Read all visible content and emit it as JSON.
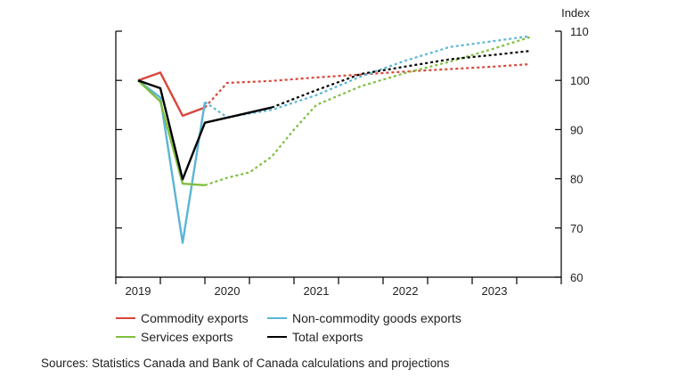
{
  "chart_data": {
    "type": "line",
    "ylabel": "Index",
    "ylim": [
      60,
      110
    ],
    "yticks": [
      60,
      70,
      80,
      90,
      100,
      110
    ],
    "xlim": [
      2018.75,
      2023.75
    ],
    "xtick_labels": [
      "2019",
      "2020",
      "2021",
      "2022",
      "2023"
    ],
    "xtick_positions": [
      2019,
      2020,
      2021,
      2022,
      2023
    ],
    "y_axis_side": "right",
    "grid": false,
    "legend_placement": "bottom",
    "series": [
      {
        "name": "Commodity exports",
        "color": "#d9463a",
        "solid": {
          "x": [
            2019.0,
            2019.25,
            2019.5,
            2019.75
          ],
          "y": [
            100,
            101.6,
            92.8,
            94.5
          ]
        },
        "projection": {
          "x": [
            2019.75,
            2020.0,
            2020.5,
            2021.0,
            2021.5,
            2022.0,
            2022.5,
            2023.0,
            2023.4
          ],
          "y": [
            94.5,
            99.5,
            99.9,
            100.6,
            101.2,
            101.8,
            102.3,
            102.8,
            103.3
          ]
        }
      },
      {
        "name": "Non-commodity goods exports",
        "color": "#5bb5d6",
        "solid": {
          "x": [
            2019.0,
            2019.25,
            2019.5,
            2019.75
          ],
          "y": [
            100,
            96.5,
            67.0,
            95.6
          ]
        },
        "projection": {
          "x": [
            2019.75,
            2020.0,
            2020.5,
            2021.0,
            2021.5,
            2022.0,
            2022.5,
            2023.0,
            2023.4
          ],
          "y": [
            95.6,
            92.5,
            94.0,
            97.0,
            100.8,
            104.0,
            106.8,
            108.0,
            109.0
          ]
        }
      },
      {
        "name": "Services exports",
        "color": "#7fbf3f",
        "solid": {
          "x": [
            2019.0,
            2019.25,
            2019.5,
            2019.75
          ],
          "y": [
            100,
            95.7,
            79.0,
            78.7
          ]
        },
        "projection": {
          "x": [
            2019.75,
            2020.0,
            2020.25,
            2020.5,
            2020.75,
            2021.0,
            2021.5,
            2022.0,
            2022.5,
            2023.0,
            2023.4
          ],
          "y": [
            78.7,
            80.2,
            81.3,
            84.5,
            90.0,
            95.0,
            98.8,
            101.5,
            103.8,
            106.5,
            108.8
          ]
        }
      },
      {
        "name": "Total exports",
        "color": "#000000",
        "solid": {
          "x": [
            2019.0,
            2019.25,
            2019.5,
            2019.75,
            2020.5
          ],
          "y": [
            100,
            98.4,
            79.9,
            91.4,
            94.5
          ]
        },
        "projection": {
          "x": [
            2020.5,
            2021.0,
            2021.5,
            2022.0,
            2022.5,
            2023.0,
            2023.4
          ],
          "y": [
            94.5,
            98.0,
            101.3,
            102.8,
            104.3,
            105.2,
            106.0
          ]
        }
      }
    ]
  },
  "legend": [
    {
      "label": "Commodity exports",
      "color": "#d9463a"
    },
    {
      "label": "Non-commodity goods exports",
      "color": "#5bb5d6"
    },
    {
      "label": "Services exports",
      "color": "#7fbf3f"
    },
    {
      "label": "Total exports",
      "color": "#000000"
    }
  ],
  "source_note": "Sources: Statistics Canada and Bank of Canada calculations and projections"
}
